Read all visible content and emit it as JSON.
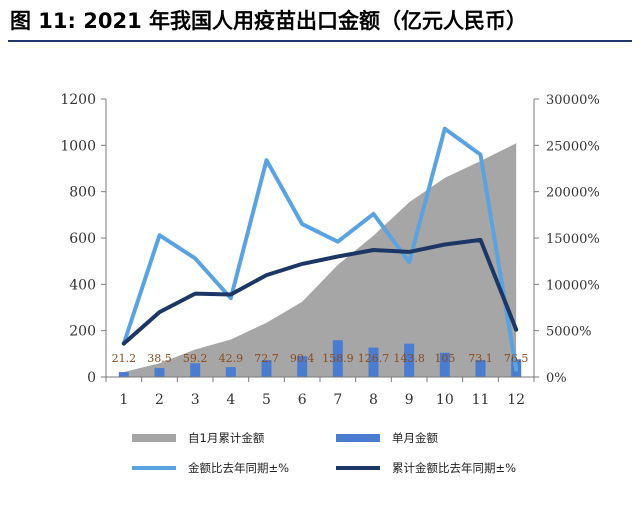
{
  "title": "图  11: 2021 年我国人用疫苗出口金额（亿元人民币）",
  "chart_data": {
    "type": "bar+area+line",
    "categories": [
      "1",
      "2",
      "3",
      "4",
      "5",
      "6",
      "7",
      "8",
      "9",
      "10",
      "11",
      "12"
    ],
    "left_axis": {
      "min": 0,
      "max": 1200,
      "ticks": [
        "0",
        "200",
        "400",
        "600",
        "800",
        "1000",
        "1200"
      ]
    },
    "right_axis": {
      "min": 0,
      "max": 30000,
      "ticks": [
        "0%",
        "5000%",
        "10000%",
        "15000%",
        "20000%",
        "25000%",
        "30000%"
      ]
    },
    "grid": false,
    "legend_position": "bottom",
    "series": [
      {
        "name": "自1月累计金额",
        "type": "area",
        "axis": "left",
        "color": "#a6a6a6",
        "values": [
          21.2,
          59.7,
          118.9,
          161.8,
          234.5,
          324.9,
          483.8,
          610.5,
          754.3,
          859.3,
          932.4,
          1008.9
        ]
      },
      {
        "name": "单月金额",
        "type": "bar",
        "axis": "left",
        "color": "#4a7ccf",
        "values": [
          21.2,
          38.5,
          59.2,
          42.9,
          72.7,
          90.4,
          158.9,
          126.7,
          143.8,
          105,
          73.1,
          76.5
        ],
        "labels": [
          "21.2",
          "38.5",
          "59.2",
          "42.9",
          "72.7",
          "90.4",
          "158.9",
          "126.7",
          "143.8",
          "105",
          "73.1",
          "76.5"
        ]
      },
      {
        "name": "金额比去年同期±%",
        "type": "line",
        "axis": "right",
        "color": "#5aa2e0",
        "values": [
          3600,
          15300,
          12800,
          8500,
          23400,
          16500,
          14600,
          17600,
          12400,
          26800,
          24000,
          800
        ]
      },
      {
        "name": "累计金额比去年同期±%",
        "type": "line",
        "axis": "right",
        "color": "#1c3766",
        "values": [
          3600,
          7000,
          9000,
          8900,
          11000,
          12200,
          13000,
          13700,
          13500,
          14300,
          14800,
          5100
        ]
      }
    ]
  }
}
